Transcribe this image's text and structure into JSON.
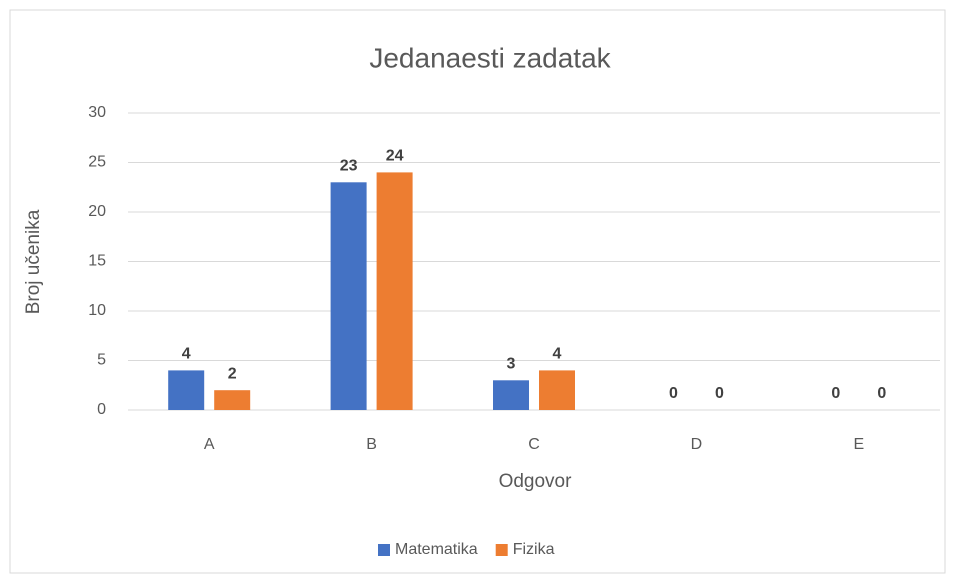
{
  "chart_data": {
    "type": "bar",
    "title": "Jedanaesti zadatak",
    "x_label": "Odgovor",
    "y_label": "Broj učenika",
    "categories": [
      "A",
      "B",
      "C",
      "D",
      "E"
    ],
    "series": [
      {
        "name": "Matematika",
        "color": "#4472c4",
        "values": [
          4,
          23,
          3,
          0,
          0
        ]
      },
      {
        "name": "Fizika",
        "color": "#ed7d31",
        "values": [
          2,
          24,
          4,
          0,
          0
        ]
      }
    ],
    "ylim": [
      0,
      30
    ],
    "yticks": [
      0,
      5,
      10,
      15,
      20,
      25,
      30
    ],
    "grid": true,
    "legend": "bottom"
  }
}
